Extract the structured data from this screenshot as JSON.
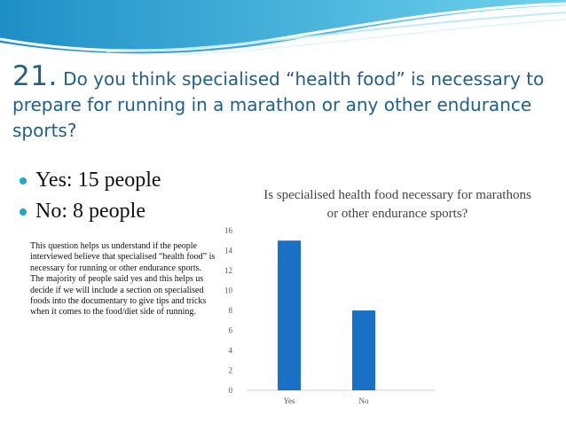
{
  "slide": {
    "number": "21.",
    "question": "Do you think specialised “health food” is necessary to prepare for running in a marathon or any other endurance sports?",
    "bullets": [
      "Yes: 15 people",
      "No: 8 people"
    ],
    "note": "This question helps us understand if the people interviewed believe that specialised “health food” is necessary for running or other endurance sports. The majority of people said yes and this helps us decide if we will include a section on specialised foods into the documentary to give tips and tricks when it comes to the food/diet side of running."
  },
  "colors": {
    "bar": "#1a70c4",
    "title": "#1f5f8b",
    "bullet": "#20a8c8",
    "wave": "#3aaed8"
  },
  "chart_data": {
    "type": "bar",
    "title": "Is specialised health food necessary for marathons or other endurance sports?",
    "categories": [
      "Yes",
      "No"
    ],
    "values": [
      15,
      8
    ],
    "ylim": [
      0,
      16
    ],
    "yticks": [
      0,
      2,
      4,
      6,
      8,
      10,
      12,
      14,
      16
    ],
    "grid": false,
    "legend": "none"
  }
}
